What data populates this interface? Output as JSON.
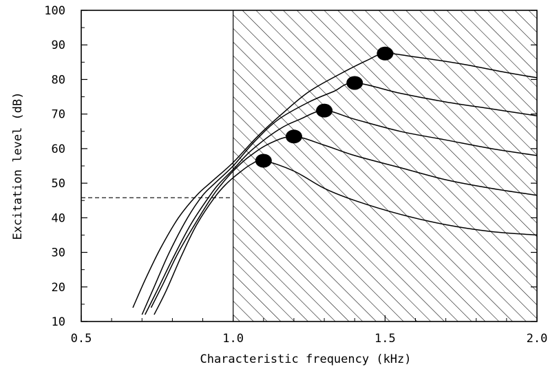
{
  "chart_data": {
    "type": "line",
    "title": "",
    "xlabel": "Characteristic frequency (kHz)",
    "ylabel": "Excitation level (dB)",
    "xlim": [
      0.5,
      2.0
    ],
    "ylim": [
      10,
      100
    ],
    "xticks": [
      "0.5",
      "1.0",
      "1.5",
      "2.0"
    ],
    "xtick_values": [
      0.5,
      1.0,
      1.5,
      2.0
    ],
    "yticks": [
      "10",
      "20",
      "30",
      "40",
      "50",
      "60",
      "70",
      "80",
      "90",
      "100"
    ],
    "ytick_values": [
      10,
      20,
      30,
      40,
      50,
      60,
      70,
      80,
      90,
      100
    ],
    "grid": false,
    "shaded_region": {
      "x_from": 1.0,
      "x_to": 2.0,
      "pattern": "diagonal-hatch"
    },
    "reference_line": {
      "y": 45.8,
      "x_from": 0.5,
      "x_to": 1.0,
      "style": "dashed"
    },
    "series": [
      {
        "peak": [
          1.1,
          56.5
        ],
        "points": [
          [
            0.74,
            12
          ],
          [
            0.78,
            19
          ],
          [
            0.83,
            29
          ],
          [
            0.88,
            38
          ],
          [
            0.94,
            46
          ],
          [
            0.98,
            50
          ],
          [
            1.02,
            53
          ],
          [
            1.06,
            55.5
          ],
          [
            1.1,
            56.5
          ],
          [
            1.2,
            53.5
          ],
          [
            1.3,
            48.5
          ],
          [
            1.4,
            45
          ],
          [
            1.55,
            41
          ],
          [
            1.7,
            38
          ],
          [
            1.85,
            36
          ],
          [
            2.0,
            35
          ]
        ]
      },
      {
        "peak": [
          1.2,
          63.5
        ],
        "points": [
          [
            0.73,
            14
          ],
          [
            0.77,
            21
          ],
          [
            0.82,
            30
          ],
          [
            0.88,
            39
          ],
          [
            0.93,
            46
          ],
          [
            0.96,
            49.5
          ],
          [
            1.0,
            53.5
          ],
          [
            1.05,
            57.5
          ],
          [
            1.12,
            61.5
          ],
          [
            1.2,
            63.5
          ],
          [
            1.3,
            61
          ],
          [
            1.4,
            58
          ],
          [
            1.55,
            54.5
          ],
          [
            1.7,
            51
          ],
          [
            1.85,
            48.5
          ],
          [
            2.0,
            46.5
          ]
        ]
      },
      {
        "peak": [
          1.3,
          71
        ],
        "points": [
          [
            0.71,
            12
          ],
          [
            0.75,
            19
          ],
          [
            0.8,
            28
          ],
          [
            0.86,
            38
          ],
          [
            0.92,
            46
          ],
          [
            0.95,
            49.5
          ],
          [
            1.0,
            54
          ],
          [
            1.06,
            59.5
          ],
          [
            1.15,
            65.5
          ],
          [
            1.22,
            68.5
          ],
          [
            1.3,
            71
          ],
          [
            1.4,
            68.5
          ],
          [
            1.55,
            65
          ],
          [
            1.7,
            62.5
          ],
          [
            1.85,
            60
          ],
          [
            2.0,
            58
          ]
        ]
      },
      {
        "peak": [
          1.4,
          79
        ],
        "points": [
          [
            0.7,
            12
          ],
          [
            0.74,
            20
          ],
          [
            0.79,
            30
          ],
          [
            0.85,
            40
          ],
          [
            0.9,
            46.5
          ],
          [
            0.94,
            50
          ],
          [
            1.0,
            55
          ],
          [
            1.07,
            62
          ],
          [
            1.15,
            68.5
          ],
          [
            1.25,
            73.5
          ],
          [
            1.33,
            76.5
          ],
          [
            1.4,
            79
          ],
          [
            1.55,
            76
          ],
          [
            1.7,
            73.5
          ],
          [
            1.85,
            71.5
          ],
          [
            2.0,
            69.5
          ]
        ]
      },
      {
        "peak": [
          1.5,
          87.5
        ],
        "points": [
          [
            0.67,
            14
          ],
          [
            0.71,
            22
          ],
          [
            0.76,
            31
          ],
          [
            0.82,
            40
          ],
          [
            0.88,
            46.5
          ],
          [
            0.93,
            50.5
          ],
          [
            1.0,
            56
          ],
          [
            1.08,
            63.5
          ],
          [
            1.16,
            70
          ],
          [
            1.25,
            76.5
          ],
          [
            1.35,
            81.5
          ],
          [
            1.44,
            85.5
          ],
          [
            1.5,
            87.5
          ],
          [
            1.6,
            86.5
          ],
          [
            1.75,
            84.5
          ],
          [
            1.9,
            82
          ],
          [
            2.0,
            80.5
          ]
        ]
      }
    ]
  }
}
